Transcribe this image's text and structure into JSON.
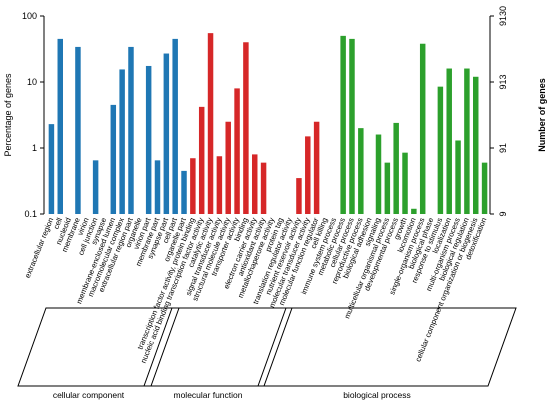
{
  "chart_data": {
    "type": "bar",
    "ylabel": "Percentage of genes",
    "y2label": "Number of genes",
    "yscale": "log",
    "ylim": [
      0.1,
      100
    ],
    "y_ticks": [
      "100",
      "10",
      "1",
      "0.1"
    ],
    "y2_ticks": [
      "9130",
      "913",
      "91",
      "9"
    ],
    "grid": false,
    "colors": {
      "cellular component": "#1f77b4",
      "molecular function": "#d62728",
      "biological process": "#2ca02c"
    },
    "groups": [
      {
        "name": "cellular component",
        "categories": [
          "extracellular region",
          "cell",
          "nucleoid",
          "membrane",
          "virion",
          "cell junction",
          "synapse",
          "membrane-enclosed lumen",
          "macromolecular complex",
          "extracellular region part",
          "organelle",
          "virion part",
          "membrane part",
          "synapse part",
          "cell part",
          "organelle part"
        ],
        "values": [
          2.3,
          45,
          0.1,
          34,
          0.1,
          0.65,
          0.1,
          4.5,
          15.5,
          34,
          0.1,
          17.5,
          0.65,
          27,
          45,
          0.45
        ]
      },
      {
        "name": "molecular function",
        "categories": [
          "transcription factor activity, protein binding",
          "nucleic acid binding transcription factor activity",
          "catalytic activity",
          "signal transducer activity",
          "structural molecule activity",
          "transporter activity",
          "binding",
          "electron carrier activity",
          "antioxidant activity",
          "metallochaperone activity",
          "protein tag",
          "translation regulator activity",
          "nutrient reservoir activity",
          "molecular transducer activity",
          "molecular function regulator"
        ],
        "values": [
          0.7,
          4.2,
          55,
          0.75,
          2.5,
          8,
          40,
          0.8,
          0.6,
          0.1,
          0.1,
          0.1,
          0.35,
          1.5,
          2.5
        ]
      },
      {
        "name": "biological process",
        "categories": [
          "cell killing",
          "immune system process",
          "metabolic process",
          "cellular process",
          "reproductive process",
          "biological adhesion",
          "signaling",
          "multicellular organismal process",
          "developmental process",
          "growth",
          "locomotion",
          "single-organism process",
          "biological phase",
          "response to stimulus",
          "localization",
          "multi-organism process",
          "biological regulation",
          "cellular component organization or biogenesis",
          "detoxification"
        ],
        "values": [
          0.1,
          0.1,
          50,
          45,
          2.0,
          0.1,
          1.6,
          0.6,
          2.4,
          0.85,
          0.12,
          38,
          0.1,
          8.5,
          16,
          1.3,
          16,
          12,
          0.6
        ]
      }
    ]
  }
}
